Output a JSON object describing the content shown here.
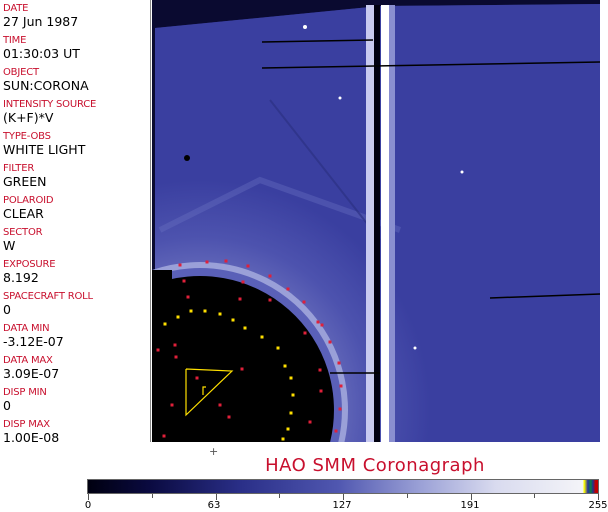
{
  "header_fields": [
    {
      "label": "DATE",
      "value": "27 Jun 1987"
    },
    {
      "label": "TIME",
      "value": "01:30:03 UT"
    },
    {
      "label": "OBJECT",
      "value": "SUN:CORONA"
    },
    {
      "label": "INTENSITY SOURCE",
      "value": "(K+F)*V"
    },
    {
      "label": "TYPE-OBS",
      "value": "WHITE LIGHT"
    },
    {
      "label": "FILTER",
      "value": "GREEN"
    },
    {
      "label": "POLAROID",
      "value": "CLEAR"
    },
    {
      "label": "SECTOR",
      "value": "W"
    },
    {
      "label": "EXPOSURE",
      "value": "8.192"
    },
    {
      "label": "SPACECRAFT ROLL",
      "value": "0"
    },
    {
      "label": "DATA MIN",
      "value": "-3.12E-07"
    },
    {
      "label": "DATA MAX",
      "value": "3.09E-07"
    },
    {
      "label": "DISP MIN",
      "value": "0"
    },
    {
      "label": "DISP MAX",
      "value": "1.00E-08"
    }
  ],
  "title": "HAO   SMM Coronagraph",
  "colorbar": {
    "ticks": [
      "0",
      "63",
      "127",
      "191",
      "255"
    ],
    "min": 0,
    "max": 255
  },
  "colors": {
    "label": "#c8102e",
    "sky": "#3a3fa0",
    "background": "#0a0a30",
    "occulter": "#000000"
  }
}
